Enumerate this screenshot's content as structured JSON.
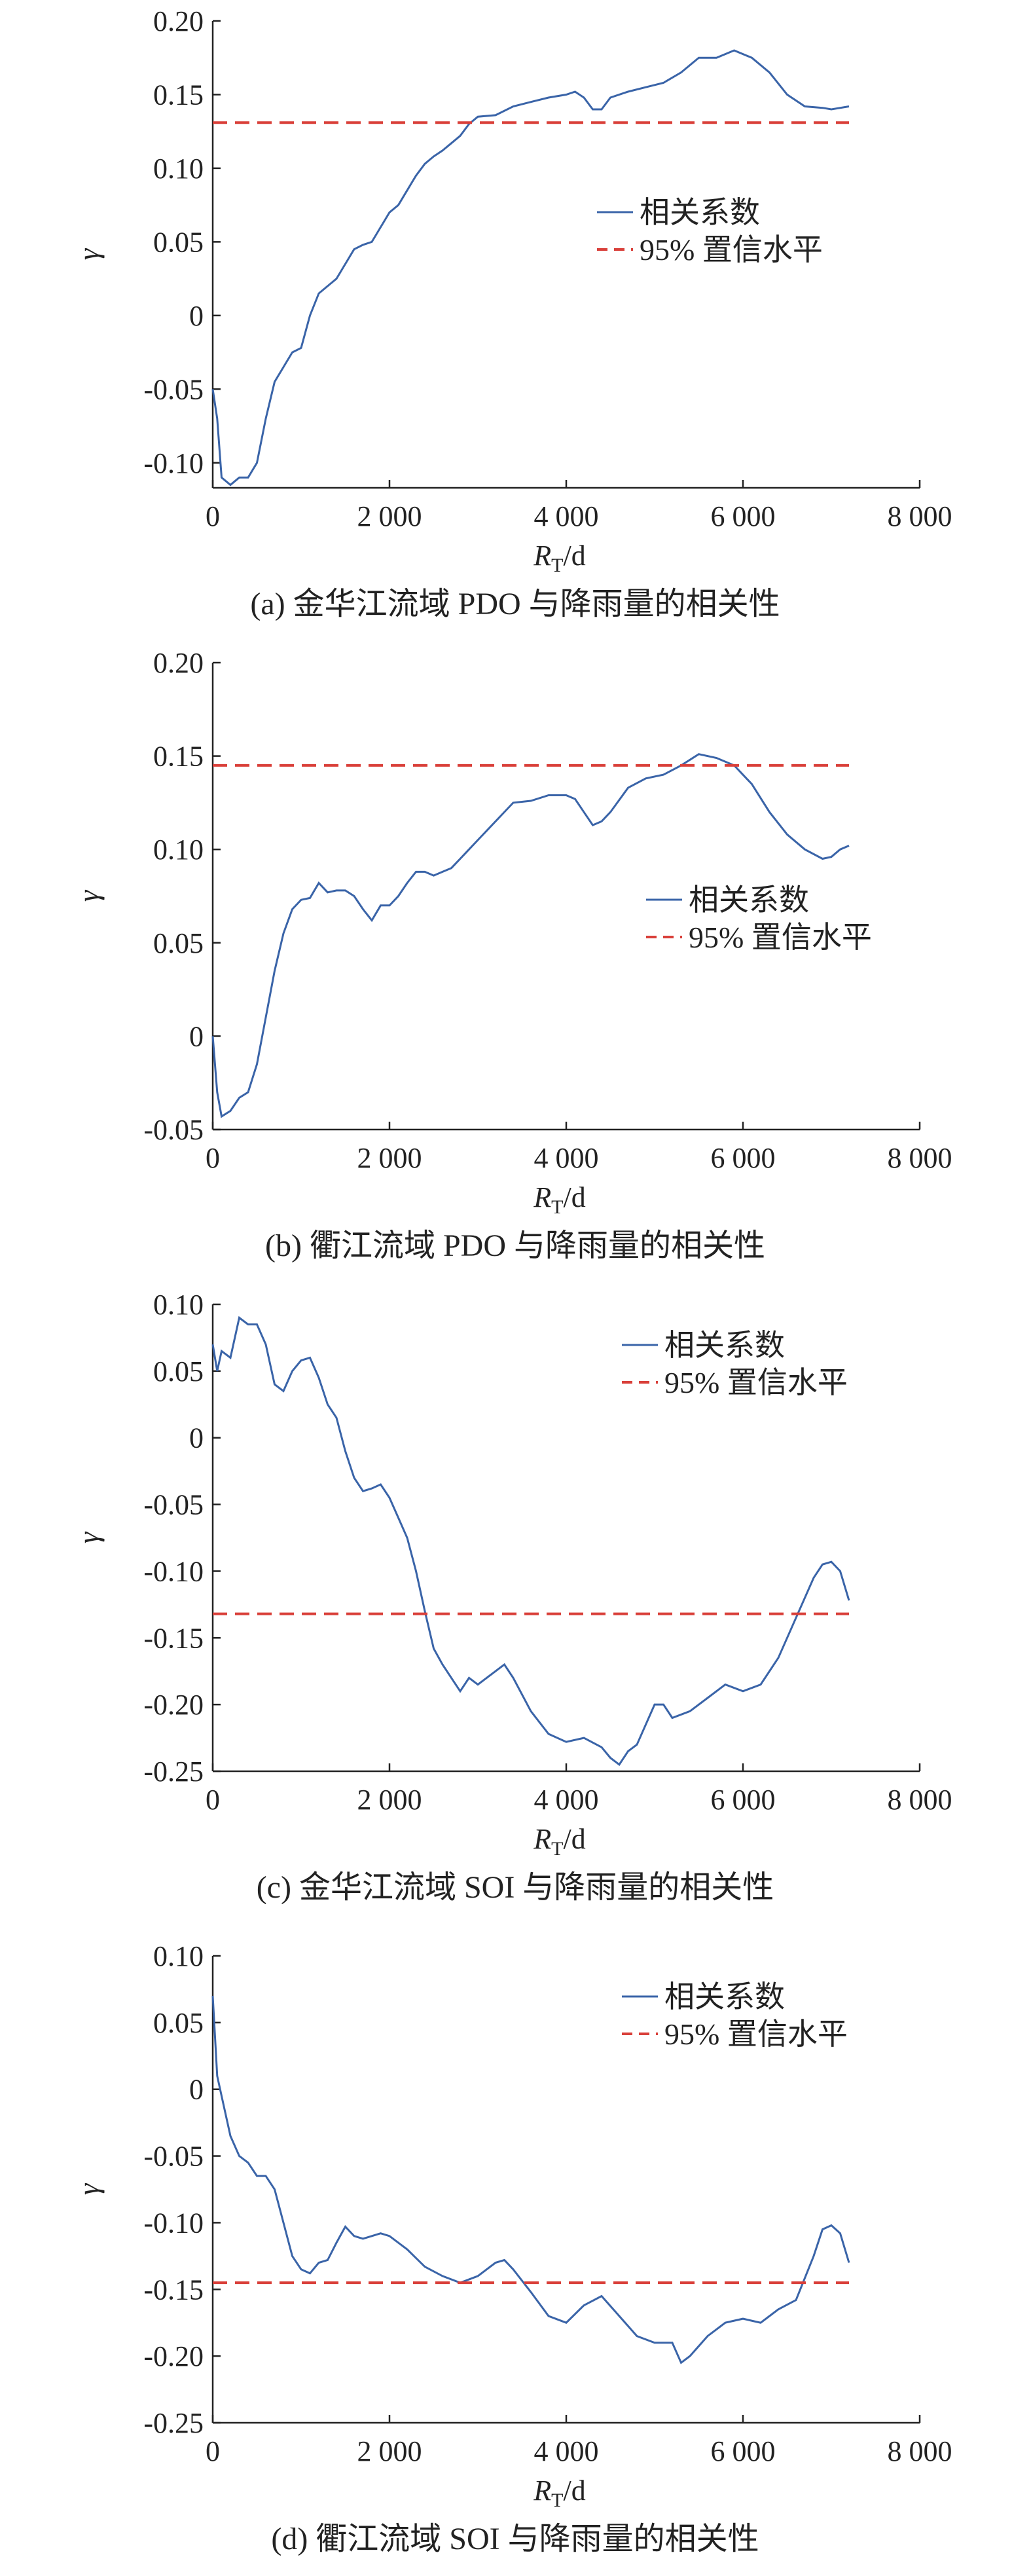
{
  "chart_data": [
    {
      "type": "line",
      "caption": "(a) 金华江流域 PDO 与降雨量的相关性",
      "ylabel": "γ",
      "xlabel_parts": [
        "R",
        "T",
        "/d"
      ],
      "xlim": [
        0,
        8000
      ],
      "xticks": [
        0,
        {
          "value": 2000,
          "label": "2 000"
        },
        {
          "value": 4000,
          "label": "4 000"
        },
        {
          "value": 6000,
          "label": "6 000"
        },
        {
          "value": 8000,
          "label": "8 000"
        }
      ],
      "ylim": [
        -0.117,
        0.2
      ],
      "yticks": [
        {
          "value": -0.1,
          "label": "-0.10"
        },
        -0.05,
        0,
        0.05,
        {
          "value": 0.1,
          "label": "0.10"
        },
        0.15,
        {
          "value": 0.2,
          "label": "0.20"
        }
      ],
      "series": [
        {
          "name": "相关系数",
          "color": "#3a64a8",
          "style": "solid",
          "x": [
            0,
            50,
            100,
            200,
            300,
            400,
            500,
            600,
            700,
            800,
            900,
            1000,
            1100,
            1200,
            1300,
            1400,
            1500,
            1600,
            1700,
            1800,
            1900,
            2000,
            2100,
            2200,
            2300,
            2400,
            2500,
            2600,
            2700,
            2800,
            2900,
            3000,
            3200,
            3400,
            3600,
            3800,
            4000,
            4100,
            4200,
            4300,
            4400,
            4500,
            4700,
            4900,
            5100,
            5300,
            5500,
            5700,
            5900,
            6100,
            6300,
            6500,
            6700,
            6900,
            7000,
            7200
          ],
          "values": [
            -0.05,
            -0.07,
            -0.11,
            -0.115,
            -0.11,
            -0.11,
            -0.1,
            -0.07,
            -0.045,
            -0.035,
            -0.025,
            -0.022,
            0,
            0.015,
            0.02,
            0.025,
            0.035,
            0.045,
            0.048,
            0.05,
            0.06,
            0.07,
            0.075,
            0.085,
            0.095,
            0.103,
            0.108,
            0.112,
            0.117,
            0.122,
            0.13,
            0.135,
            0.136,
            0.142,
            0.145,
            0.148,
            0.15,
            0.152,
            0.148,
            0.14,
            0.14,
            0.148,
            0.152,
            0.155,
            0.158,
            0.165,
            0.175,
            0.175,
            0.18,
            0.175,
            0.165,
            0.15,
            0.142,
            0.141,
            0.14,
            0.142
          ]
        },
        {
          "name": "95% 置信水平",
          "color": "#d9403a",
          "style": "dashed",
          "x": [
            0,
            7200
          ],
          "values": [
            0.131,
            0.131
          ]
        }
      ]
    },
    {
      "type": "line",
      "caption": "(b) 衢江流域 PDO 与降雨量的相关性",
      "ylabel": "γ",
      "xlabel_parts": [
        "R",
        "T",
        "/d"
      ],
      "xlim": [
        0,
        8000
      ],
      "xticks": [
        0,
        {
          "value": 2000,
          "label": "2 000"
        },
        {
          "value": 4000,
          "label": "4 000"
        },
        {
          "value": 6000,
          "label": "6 000"
        },
        {
          "value": 8000,
          "label": "8 000"
        }
      ],
      "ylim": [
        -0.05,
        0.2
      ],
      "yticks": [
        -0.05,
        0,
        0.05,
        {
          "value": 0.1,
          "label": "0.10"
        },
        0.15,
        {
          "value": 0.2,
          "label": "0.20"
        }
      ],
      "series": [
        {
          "name": "相关系数",
          "color": "#3a64a8",
          "style": "solid",
          "x": [
            0,
            50,
            100,
            200,
            300,
            400,
            500,
            600,
            700,
            800,
            900,
            1000,
            1100,
            1200,
            1300,
            1400,
            1500,
            1600,
            1700,
            1800,
            1900,
            2000,
            2100,
            2200,
            2300,
            2400,
            2500,
            2600,
            2700,
            2800,
            2900,
            3000,
            3200,
            3400,
            3600,
            3800,
            4000,
            4100,
            4200,
            4300,
            4400,
            4500,
            4700,
            4900,
            5100,
            5300,
            5500,
            5700,
            5900,
            6100,
            6300,
            6500,
            6700,
            6900,
            7000,
            7100,
            7200
          ],
          "values": [
            0,
            -0.03,
            -0.043,
            -0.04,
            -0.033,
            -0.03,
            -0.015,
            0.01,
            0.035,
            0.055,
            0.068,
            0.073,
            0.074,
            0.082,
            0.077,
            0.078,
            0.078,
            0.075,
            0.068,
            0.062,
            0.07,
            0.07,
            0.075,
            0.082,
            0.088,
            0.088,
            0.086,
            0.088,
            0.09,
            0.095,
            0.1,
            0.105,
            0.115,
            0.125,
            0.126,
            0.129,
            0.129,
            0.127,
            0.12,
            0.113,
            0.115,
            0.12,
            0.133,
            0.138,
            0.14,
            0.145,
            0.151,
            0.149,
            0.145,
            0.135,
            0.12,
            0.108,
            0.1,
            0.095,
            0.096,
            0.1,
            0.102
          ]
        },
        {
          "name": "95% 置信水平",
          "color": "#d9403a",
          "style": "dashed",
          "x": [
            0,
            7200
          ],
          "values": [
            0.145,
            0.145
          ]
        }
      ]
    },
    {
      "type": "line",
      "caption": "(c) 金华江流域 SOI 与降雨量的相关性",
      "ylabel": "γ",
      "xlabel_parts": [
        "R",
        "T",
        "/d"
      ],
      "xlim": [
        0,
        8000
      ],
      "xticks": [
        0,
        {
          "value": 2000,
          "label": "2 000"
        },
        {
          "value": 4000,
          "label": "4 000"
        },
        {
          "value": 6000,
          "label": "6 000"
        },
        {
          "value": 8000,
          "label": "8 000"
        }
      ],
      "ylim": [
        -0.25,
        0.1
      ],
      "yticks": [
        -0.25,
        {
          "value": -0.2,
          "label": "-0.20"
        },
        -0.15,
        {
          "value": -0.1,
          "label": "-0.10"
        },
        -0.05,
        0,
        0.05,
        {
          "value": 0.1,
          "label": "0.10"
        }
      ],
      "series": [
        {
          "name": "相关系数",
          "color": "#3a64a8",
          "style": "solid",
          "x": [
            0,
            50,
            100,
            200,
            300,
            400,
            500,
            600,
            700,
            800,
            900,
            1000,
            1100,
            1200,
            1300,
            1400,
            1500,
            1600,
            1700,
            1800,
            1900,
            2000,
            2100,
            2200,
            2300,
            2400,
            2500,
            2600,
            2700,
            2800,
            2900,
            3000,
            3200,
            3300,
            3400,
            3600,
            3800,
            4000,
            4200,
            4400,
            4500,
            4600,
            4700,
            4800,
            5000,
            5100,
            5200,
            5400,
            5600,
            5800,
            6000,
            6200,
            6400,
            6600,
            6800,
            6900,
            7000,
            7100,
            7200
          ],
          "values": [
            0.07,
            0.05,
            0.065,
            0.06,
            0.09,
            0.085,
            0.085,
            0.07,
            0.04,
            0.035,
            0.05,
            0.058,
            0.06,
            0.045,
            0.025,
            0.015,
            -0.01,
            -0.03,
            -0.04,
            -0.038,
            -0.035,
            -0.045,
            -0.06,
            -0.075,
            -0.1,
            -0.13,
            -0.158,
            -0.17,
            -0.18,
            -0.19,
            -0.18,
            -0.185,
            -0.175,
            -0.17,
            -0.18,
            -0.205,
            -0.222,
            -0.228,
            -0.225,
            -0.232,
            -0.24,
            -0.245,
            -0.235,
            -0.23,
            -0.2,
            -0.2,
            -0.21,
            -0.205,
            -0.195,
            -0.185,
            -0.19,
            -0.185,
            -0.165,
            -0.135,
            -0.105,
            -0.095,
            -0.093,
            -0.1,
            -0.122
          ]
        },
        {
          "name": "95% 置信水平",
          "color": "#d9403a",
          "style": "dashed",
          "x": [
            0,
            7200
          ],
          "values": [
            -0.132,
            -0.132
          ]
        }
      ]
    },
    {
      "type": "line",
      "caption": "(d) 衢江流域 SOI 与降雨量的相关性",
      "ylabel": "γ",
      "xlabel_parts": [
        "R",
        "T",
        "/d"
      ],
      "xlim": [
        0,
        8000
      ],
      "xticks": [
        0,
        {
          "value": 2000,
          "label": "2 000"
        },
        {
          "value": 4000,
          "label": "4 000"
        },
        {
          "value": 6000,
          "label": "6 000"
        },
        {
          "value": 8000,
          "label": "8 000"
        }
      ],
      "ylim": [
        -0.25,
        0.1
      ],
      "yticks": [
        -0.25,
        {
          "value": -0.2,
          "label": "-0.20"
        },
        -0.15,
        {
          "value": -0.1,
          "label": "-0.10"
        },
        -0.05,
        0,
        0.05,
        {
          "value": 0.1,
          "label": "0.10"
        }
      ],
      "series": [
        {
          "name": "相关系数",
          "color": "#3a64a8",
          "style": "solid",
          "x": [
            0,
            50,
            100,
            200,
            300,
            400,
            500,
            600,
            700,
            800,
            900,
            1000,
            1100,
            1200,
            1300,
            1400,
            1500,
            1600,
            1700,
            1800,
            1900,
            2000,
            2200,
            2400,
            2600,
            2800,
            3000,
            3200,
            3300,
            3400,
            3600,
            3800,
            4000,
            4200,
            4400,
            4600,
            4800,
            5000,
            5100,
            5200,
            5300,
            5400,
            5600,
            5800,
            6000,
            6200,
            6400,
            6600,
            6800,
            6900,
            7000,
            7100,
            7200
          ],
          "values": [
            0.07,
            0.01,
            -0.005,
            -0.035,
            -0.05,
            -0.055,
            -0.065,
            -0.065,
            -0.075,
            -0.1,
            -0.125,
            -0.135,
            -0.138,
            -0.13,
            -0.128,
            -0.115,
            -0.103,
            -0.11,
            -0.112,
            -0.11,
            -0.108,
            -0.11,
            -0.12,
            -0.133,
            -0.14,
            -0.145,
            -0.14,
            -0.13,
            -0.128,
            -0.135,
            -0.152,
            -0.17,
            -0.175,
            -0.162,
            -0.155,
            -0.17,
            -0.185,
            -0.19,
            -0.19,
            -0.19,
            -0.205,
            -0.2,
            -0.185,
            -0.175,
            -0.172,
            -0.175,
            -0.165,
            -0.158,
            -0.125,
            -0.105,
            -0.102,
            -0.108,
            -0.13
          ]
        },
        {
          "name": "95% 置信水平",
          "color": "#d9403a",
          "style": "dashed",
          "x": [
            0,
            7200
          ],
          "values": [
            -0.145,
            -0.145
          ]
        }
      ]
    }
  ]
}
